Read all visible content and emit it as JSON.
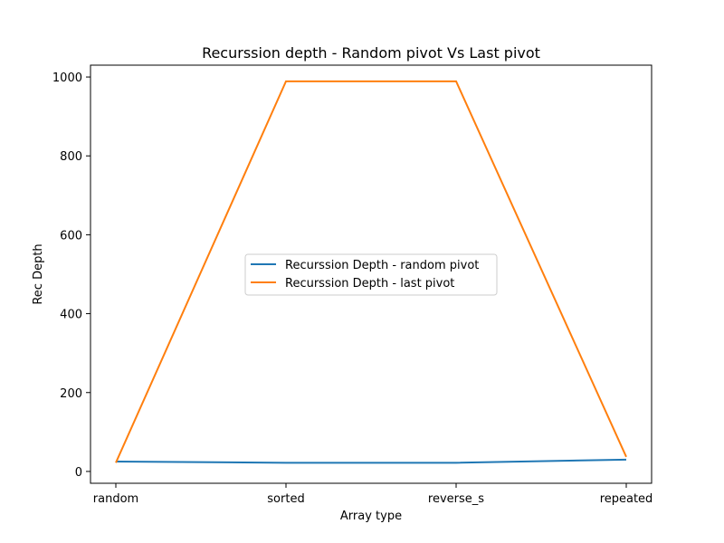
{
  "chart_data": {
    "type": "line",
    "title": "Recurssion depth - Random pivot Vs Last pivot",
    "xlabel": "Array type",
    "ylabel": "Rec Depth",
    "categories": [
      "random",
      "sorted",
      "reverse_s",
      "repeated"
    ],
    "ylim": [
      -30,
      1030
    ],
    "yticks": [
      0,
      200,
      400,
      600,
      800,
      1000
    ],
    "grid": false,
    "legend_position": "center",
    "series": [
      {
        "name": "Recurssion Depth - random pivot",
        "color": "#1f77b4",
        "values": [
          25,
          22,
          22,
          30
        ]
      },
      {
        "name": "Recurssion Depth - last pivot",
        "color": "#ff7f0e",
        "values": [
          22,
          989,
          989,
          37
        ]
      }
    ]
  }
}
